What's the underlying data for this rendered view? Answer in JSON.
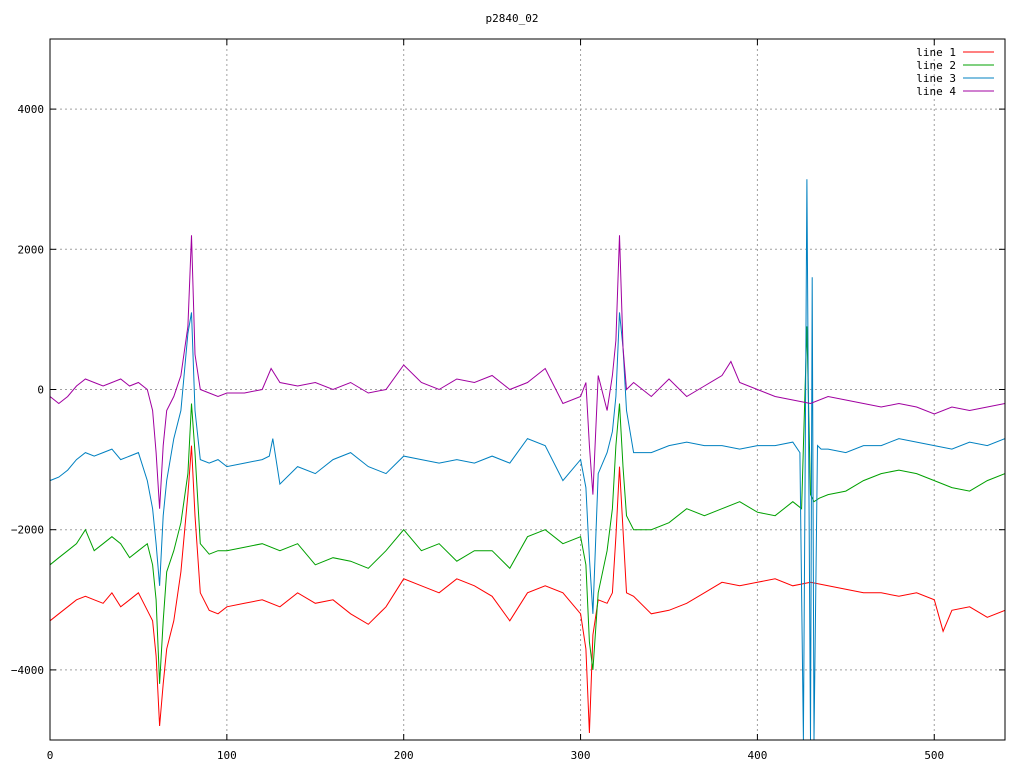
{
  "chart_data": {
    "type": "line",
    "title": "p2840_02",
    "xlabel": "",
    "ylabel": "",
    "xlim": [
      0,
      540
    ],
    "ylim": [
      -5000,
      5000
    ],
    "xticks": [
      0,
      100,
      200,
      300,
      400,
      500
    ],
    "xtick_labels": [
      "0",
      "100",
      "200",
      "300",
      "400",
      "500"
    ],
    "yticks": [
      -4000,
      -2000,
      0,
      2000,
      4000
    ],
    "ytick_labels": [
      "−4000",
      "−2000",
      "0",
      "2000",
      "4000"
    ],
    "grid": true,
    "legend_position": "top-right",
    "series": [
      {
        "name": "line 1",
        "color": "#ff0000",
        "x": [
          0,
          5,
          10,
          15,
          20,
          25,
          30,
          35,
          40,
          45,
          50,
          55,
          58,
          60,
          62,
          64,
          66,
          70,
          74,
          78,
          80,
          82,
          85,
          90,
          95,
          100,
          110,
          120,
          130,
          140,
          150,
          160,
          170,
          180,
          190,
          200,
          210,
          220,
          230,
          240,
          250,
          260,
          270,
          280,
          290,
          300,
          303,
          305,
          307,
          310,
          315,
          318,
          320,
          322,
          324,
          326,
          330,
          340,
          350,
          360,
          370,
          380,
          390,
          400,
          410,
          420,
          430,
          440,
          450,
          460,
          470,
          480,
          490,
          500,
          505,
          510,
          520,
          530,
          540
        ],
        "y": [
          -3300,
          -3200,
          -3100,
          -3000,
          -2950,
          -3000,
          -3050,
          -2900,
          -3100,
          -3000,
          -2900,
          -3150,
          -3300,
          -3800,
          -4800,
          -4200,
          -3700,
          -3300,
          -2600,
          -1500,
          -800,
          -1800,
          -2900,
          -3150,
          -3200,
          -3100,
          -3050,
          -3000,
          -3100,
          -2900,
          -3050,
          -3000,
          -3200,
          -3350,
          -3100,
          -2700,
          -2800,
          -2900,
          -2700,
          -2800,
          -2950,
          -3300,
          -2900,
          -2800,
          -2900,
          -3200,
          -3700,
          -4900,
          -3500,
          -3000,
          -3050,
          -2900,
          -2100,
          -1100,
          -2000,
          -2900,
          -2950,
          -3200,
          -3150,
          -3050,
          -2900,
          -2750,
          -2800,
          -2750,
          -2700,
          -2800,
          -2750,
          -2800,
          -2850,
          -2900,
          -2900,
          -2950,
          -2900,
          -3000,
          -3450,
          -3150,
          -3100,
          -3250,
          -3150
        ]
      },
      {
        "name": "line 2",
        "color": "#00a000",
        "x": [
          0,
          5,
          10,
          15,
          20,
          25,
          30,
          35,
          40,
          45,
          50,
          55,
          58,
          60,
          62,
          64,
          66,
          70,
          74,
          78,
          80,
          82,
          85,
          90,
          95,
          100,
          110,
          120,
          130,
          140,
          150,
          160,
          170,
          180,
          190,
          200,
          210,
          220,
          230,
          240,
          250,
          260,
          270,
          280,
          290,
          300,
          303,
          305,
          307,
          310,
          315,
          318,
          320,
          322,
          324,
          326,
          330,
          340,
          350,
          360,
          370,
          380,
          390,
          400,
          410,
          420,
          425,
          428,
          430,
          432,
          435,
          440,
          450,
          460,
          470,
          480,
          490,
          500,
          510,
          520,
          530,
          540
        ],
        "y": [
          -2500,
          -2400,
          -2300,
          -2200,
          -2000,
          -2300,
          -2200,
          -2100,
          -2200,
          -2400,
          -2300,
          -2200,
          -2500,
          -3000,
          -4200,
          -3300,
          -2600,
          -2300,
          -1900,
          -1200,
          -200,
          -900,
          -2200,
          -2350,
          -2300,
          -2300,
          -2250,
          -2200,
          -2300,
          -2200,
          -2500,
          -2400,
          -2450,
          -2550,
          -2300,
          -2000,
          -2300,
          -2200,
          -2450,
          -2300,
          -2300,
          -2550,
          -2100,
          -2000,
          -2200,
          -2100,
          -2500,
          -3600,
          -4000,
          -2900,
          -2300,
          -1700,
          -800,
          -200,
          -1100,
          -1800,
          -2000,
          -2000,
          -1900,
          -1700,
          -1800,
          -1700,
          -1600,
          -1750,
          -1800,
          -1600,
          -1700,
          900,
          -1500,
          -1600,
          -1550,
          -1500,
          -1450,
          -1300,
          -1200,
          -1150,
          -1200,
          -1300,
          -1400,
          -1450,
          -1300,
          -1200
        ]
      },
      {
        "name": "line 3",
        "color": "#0080c0",
        "x": [
          0,
          5,
          10,
          15,
          20,
          25,
          30,
          35,
          40,
          45,
          50,
          55,
          58,
          60,
          62,
          64,
          66,
          70,
          74,
          78,
          80,
          82,
          85,
          90,
          95,
          100,
          110,
          120,
          124,
          126,
          130,
          140,
          150,
          160,
          170,
          180,
          190,
          200,
          210,
          220,
          230,
          240,
          250,
          260,
          270,
          280,
          290,
          300,
          303,
          305,
          307,
          310,
          315,
          318,
          320,
          322,
          324,
          326,
          330,
          340,
          350,
          360,
          370,
          380,
          390,
          400,
          410,
          420,
          424,
          426,
          427,
          428,
          429,
          430,
          431,
          432,
          434,
          436,
          440,
          450,
          460,
          470,
          480,
          490,
          500,
          510,
          520,
          530,
          540
        ],
        "y": [
          -1300,
          -1250,
          -1150,
          -1000,
          -900,
          -950,
          -900,
          -850,
          -1000,
          -950,
          -900,
          -1300,
          -1700,
          -2200,
          -2800,
          -1800,
          -1300,
          -700,
          -300,
          800,
          1100,
          -300,
          -1000,
          -1050,
          -1000,
          -1100,
          -1050,
          -1000,
          -950,
          -700,
          -1350,
          -1100,
          -1200,
          -1000,
          -900,
          -1100,
          -1200,
          -950,
          -1000,
          -1050,
          -1000,
          -1050,
          -950,
          -1050,
          -700,
          -800,
          -1300,
          -1000,
          -1400,
          -2400,
          -3200,
          -1200,
          -900,
          -600,
          -100,
          1100,
          600,
          -300,
          -900,
          -900,
          -800,
          -750,
          -800,
          -800,
          -850,
          -800,
          -800,
          -750,
          -900,
          -5000,
          -1000,
          3000,
          -900,
          -5000,
          1600,
          -5000,
          -800,
          -850,
          -850,
          -900,
          -800,
          -800,
          -700,
          -750,
          -800,
          -850,
          -750,
          -800,
          -700
        ]
      },
      {
        "name": "line 4",
        "color": "#a000a0",
        "x": [
          0,
          5,
          10,
          15,
          20,
          25,
          30,
          35,
          40,
          45,
          50,
          55,
          58,
          60,
          62,
          64,
          66,
          70,
          74,
          78,
          80,
          82,
          85,
          90,
          95,
          100,
          110,
          120,
          125,
          130,
          140,
          150,
          160,
          170,
          180,
          190,
          200,
          210,
          220,
          230,
          240,
          250,
          260,
          270,
          280,
          290,
          300,
          303,
          305,
          307,
          310,
          315,
          318,
          320,
          322,
          324,
          326,
          330,
          340,
          350,
          360,
          370,
          380,
          385,
          390,
          400,
          410,
          420,
          430,
          440,
          450,
          460,
          470,
          480,
          490,
          500,
          510,
          520,
          530,
          540
        ],
        "y": [
          -100,
          -200,
          -100,
          50,
          150,
          100,
          50,
          100,
          150,
          50,
          100,
          0,
          -300,
          -900,
          -1700,
          -800,
          -300,
          -100,
          200,
          900,
          2200,
          500,
          0,
          -50,
          -100,
          -50,
          -50,
          0,
          300,
          100,
          50,
          100,
          0,
          100,
          -50,
          0,
          350,
          100,
          0,
          150,
          100,
          200,
          0,
          100,
          300,
          -200,
          -100,
          100,
          -800,
          -1500,
          200,
          -300,
          200,
          700,
          2200,
          600,
          0,
          100,
          -100,
          150,
          -100,
          50,
          200,
          400,
          100,
          0,
          -100,
          -150,
          -200,
          -100,
          -150,
          -200,
          -250,
          -200,
          -250,
          -350,
          -250,
          -300,
          -250,
          -200
        ]
      }
    ]
  }
}
